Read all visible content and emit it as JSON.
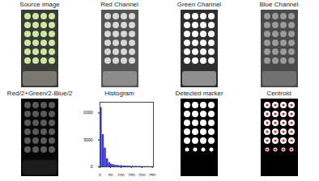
{
  "panels": [
    {
      "title": "Source image"
    },
    {
      "title": "Red Channel"
    },
    {
      "title": "Green Channel"
    },
    {
      "title": "Blue Channel"
    },
    {
      "title": "Red/2+Green/2-Blue/2"
    },
    {
      "title": "Histogram"
    },
    {
      "title": "Detected marker"
    },
    {
      "title": "Centroid"
    }
  ],
  "chart_data": {
    "type": "histogram",
    "title": "Histogram",
    "color": "#3b3bd6",
    "bins": [
      0,
      10,
      20,
      30,
      40,
      50,
      60,
      70,
      80,
      90,
      100,
      110,
      120,
      130,
      140,
      150,
      160,
      170,
      180,
      190,
      200,
      210,
      220,
      230,
      240,
      250,
      255
    ],
    "values": [
      11000,
      6000,
      3500,
      1500,
      800,
      500,
      400,
      300,
      250,
      200,
      200,
      180,
      150,
      150,
      120,
      100,
      100,
      90,
      80,
      80,
      70,
      60,
      60,
      50,
      50,
      40
    ],
    "xlim": [
      0,
      255
    ],
    "xticks": [
      0,
      50,
      100,
      150,
      200,
      250
    ],
    "ylim": [
      0,
      12000
    ],
    "yticks": [
      0,
      5000,
      10000
    ],
    "grid": false
  }
}
